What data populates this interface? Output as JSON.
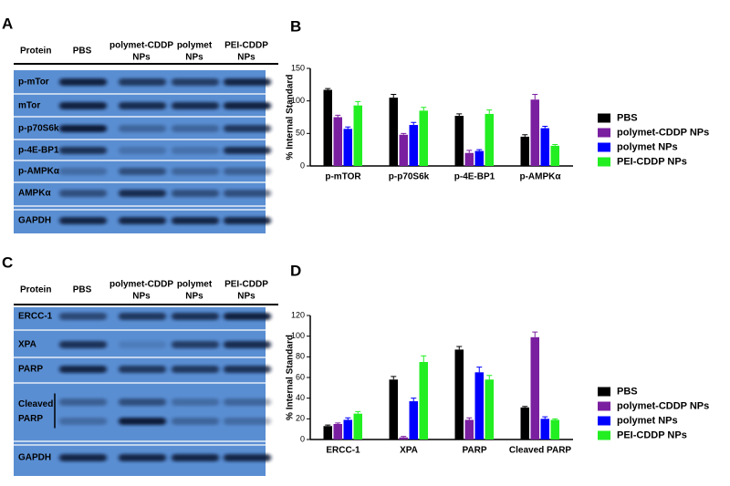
{
  "blots": [
    {
      "panel": "A",
      "header_label": "Protein",
      "columns": [
        [
          "PBS"
        ],
        [
          "polymet-CDDP",
          "NPs"
        ],
        [
          "polymet",
          "NPs"
        ],
        [
          "PEI-CDDP",
          "NPs"
        ]
      ],
      "rows": [
        [
          "p-mTor"
        ],
        [
          "mTor"
        ],
        [
          "p-p70S6k"
        ],
        [
          "p-4E-BP1"
        ],
        [
          "p-AMPKα"
        ],
        [
          "AMPKα"
        ],
        [
          "GAPDH"
        ]
      ]
    },
    {
      "panel": "C",
      "header_label": "Protein",
      "columns": [
        [
          "PBS"
        ],
        [
          "polymet-CDDP",
          "NPs"
        ],
        [
          "polymet",
          "NPs"
        ],
        [
          "PEI-CDDP",
          "NPs"
        ]
      ],
      "rows": [
        [
          "ERCC-1"
        ],
        [
          "XPA"
        ],
        [
          "PARP"
        ],
        [
          "Cleaved",
          "PARP"
        ],
        [
          "GAPDH"
        ]
      ]
    }
  ],
  "chart_data": [
    {
      "panel": "B",
      "type": "bar",
      "ylabel": "% Internal Standard",
      "categories": [
        "p-mTOR",
        "p-p70S6k",
        "p-4E-BP1",
        "p-AMPKα"
      ],
      "series": [
        {
          "name": "PBS",
          "color": "#000000",
          "values": [
            117,
            105,
            77,
            45
          ],
          "errors": [
            2,
            5,
            3,
            3
          ]
        },
        {
          "name": "polymet-CDDP NPs",
          "color": "#7a1fa0",
          "values": [
            75,
            48,
            20,
            102
          ],
          "errors": [
            3,
            2,
            4,
            8
          ]
        },
        {
          "name": "polymet NPs",
          "color": "#0000ff",
          "values": [
            57,
            63,
            23,
            58
          ],
          "errors": [
            3,
            4,
            2,
            3
          ]
        },
        {
          "name": "PEI-CDDP NPs",
          "color": "#22ee22",
          "values": [
            93,
            85,
            80,
            31
          ],
          "errors": [
            6,
            5,
            6,
            2
          ]
        }
      ],
      "ylim": [
        0,
        150
      ],
      "yticks": [
        0,
        50,
        100,
        150
      ],
      "legend": "right"
    },
    {
      "panel": "D",
      "type": "bar",
      "ylabel": "% Internal Standard",
      "categories": [
        "ERCC-1",
        "XPA",
        "PARP",
        "Cleaved PARP"
      ],
      "series": [
        {
          "name": "PBS",
          "color": "#000000",
          "values": [
            13,
            58,
            87,
            31
          ],
          "errors": [
            1,
            3,
            3,
            1
          ]
        },
        {
          "name": "polymet-CDDP NPs",
          "color": "#7a1fa0",
          "values": [
            15,
            2,
            19,
            99
          ],
          "errors": [
            1,
            1,
            2,
            5
          ]
        },
        {
          "name": "polymet NPs",
          "color": "#0000ff",
          "values": [
            19,
            37,
            65,
            20
          ],
          "errors": [
            2,
            3,
            5,
            2
          ]
        },
        {
          "name": "PEI-CDDP NPs",
          "color": "#22ee22",
          "values": [
            25,
            75,
            58,
            19
          ],
          "errors": [
            2,
            6,
            4,
            1
          ]
        }
      ],
      "ylim": [
        0,
        120
      ],
      "yticks": [
        0,
        20,
        40,
        60,
        80,
        100,
        120
      ],
      "legend": "right"
    }
  ]
}
